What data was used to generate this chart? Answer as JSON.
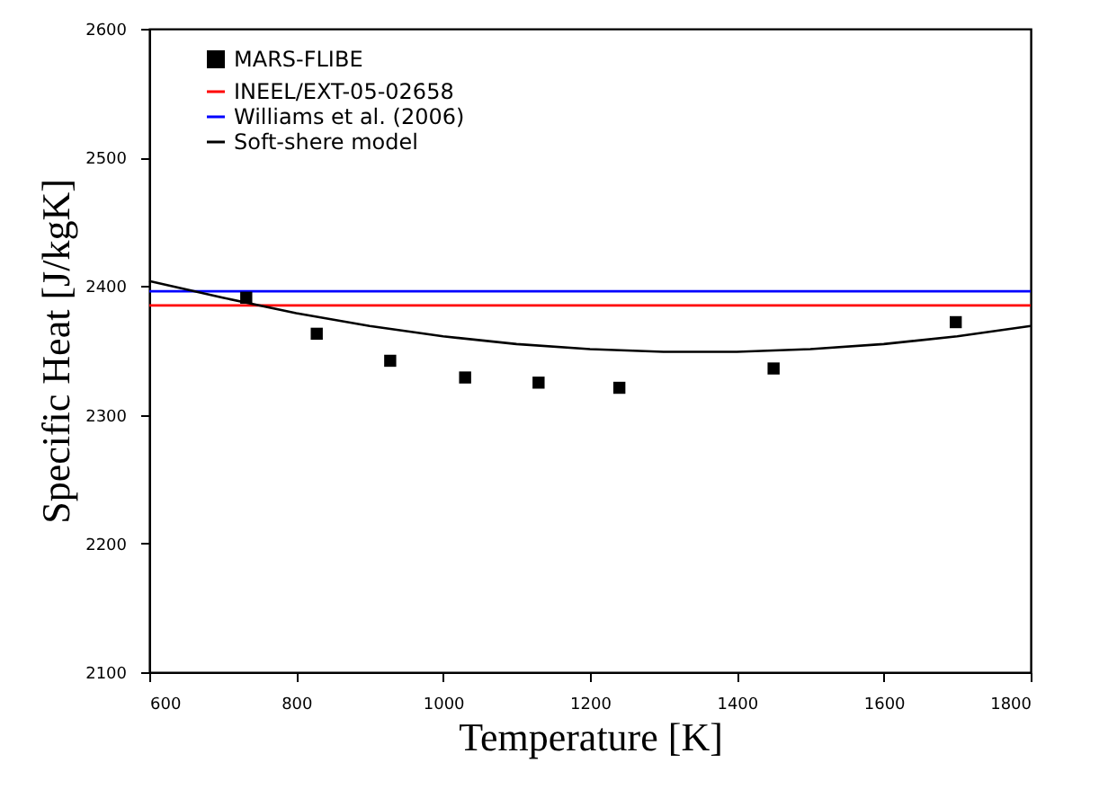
{
  "chart_data": {
    "type": "line",
    "xlabel": "Temperature [K]",
    "ylabel": "Specific Heat [J/kgK]",
    "xlim": [
      600,
      1800
    ],
    "xticks": [
      600,
      800,
      1000,
      1200,
      1400,
      1600,
      1800
    ],
    "ylim": [
      2100,
      2600
    ],
    "yticks": [
      2100,
      2200,
      2300,
      2400,
      2500,
      2600
    ],
    "grid": false,
    "legend": "top left",
    "series": [
      {
        "name": "MARS-FLIBE",
        "type": "scatter",
        "marker": "square",
        "color": "#000000",
        "x": [
          732,
          828,
          928,
          1030,
          1130,
          1240,
          1450,
          1698
        ],
        "values": [
          2391,
          2363,
          2342,
          2329,
          2325,
          2321,
          2336,
          2372
        ]
      },
      {
        "name": "INEEL/EXT-05-02658",
        "color": "#ff0000",
        "x": [
          600,
          1800
        ],
        "values": [
          2385,
          2385
        ]
      },
      {
        "name": "Williams et al. (2006)",
        "color": "#0000ff",
        "x": [
          600,
          1800
        ],
        "values": [
          2396,
          2396
        ]
      },
      {
        "name": "Soft-shere model",
        "color": "#000000",
        "x": [
          600,
          700,
          800,
          900,
          1000,
          1100,
          1200,
          1300,
          1400,
          1500,
          1600,
          1700,
          1800
        ],
        "values": [
          2404,
          2391,
          2379,
          2369,
          2361,
          2355,
          2351,
          2349,
          2349,
          2351,
          2355,
          2361,
          2369
        ]
      }
    ]
  }
}
